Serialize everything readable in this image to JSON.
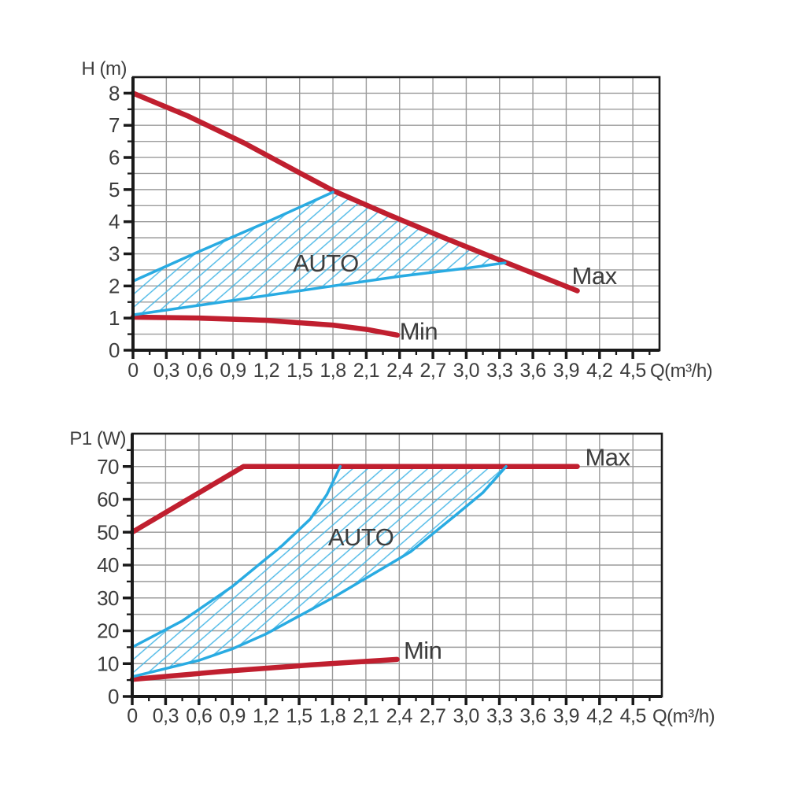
{
  "colors": {
    "red": "#c01f2f",
    "blue": "#29abe2",
    "hatch_blue": "#4ab8e6",
    "grid": "#9b9b9b",
    "axis": "#1a1a1a",
    "text": "#3d3d3d",
    "background": "#ffffff"
  },
  "chart_data": [
    {
      "type": "line",
      "title": "Pump head vs flow",
      "ylabel": "H (m)",
      "xlabel": "Q(m³/h)",
      "xlim": [
        0,
        4.74
      ],
      "ylim": [
        0,
        8.5
      ],
      "x_major": 0.3,
      "x_minor": 0.15,
      "y_major": 1,
      "y_minor": 0.5,
      "grid": true,
      "x_tick_labels": [
        "0",
        "0,3",
        "0,6",
        "0,9",
        "1,2",
        "1,5",
        "1,8",
        "2,1",
        "2,4",
        "2,7",
        "3,0",
        "3,3",
        "3,6",
        "3,9",
        "4,2",
        "4,5"
      ],
      "y_tick_labels": [
        "0",
        "1",
        "2",
        "3",
        "4",
        "5",
        "6",
        "7",
        "8"
      ],
      "series": [
        {
          "name": "Max",
          "color": "red",
          "width": 6.5,
          "points": [
            [
              0,
              8.0
            ],
            [
              0.5,
              7.28
            ],
            [
              1.0,
              6.45
            ],
            [
              1.5,
              5.52
            ],
            [
              1.8,
              4.97
            ],
            [
              2.3,
              4.22
            ],
            [
              2.8,
              3.5
            ],
            [
              3.35,
              2.74
            ],
            [
              4.0,
              1.85
            ]
          ]
        },
        {
          "name": "Min",
          "color": "red",
          "width": 6.5,
          "points": [
            [
              0,
              1.03
            ],
            [
              0.6,
              1.0
            ],
            [
              1.2,
              0.93
            ],
            [
              1.8,
              0.78
            ],
            [
              2.1,
              0.65
            ],
            [
              2.38,
              0.47
            ]
          ]
        },
        {
          "name": "AUTO-upper",
          "color": "blue",
          "width": 3.5,
          "points": [
            [
              0,
              2.15
            ],
            [
              0.6,
              3.08
            ],
            [
              1.2,
              3.98
            ],
            [
              1.8,
              4.92
            ]
          ]
        },
        {
          "name": "AUTO-lower",
          "color": "blue",
          "width": 3.5,
          "points": [
            [
              0,
              1.1
            ],
            [
              0.8,
              1.5
            ],
            [
              1.6,
              1.9
            ],
            [
              2.4,
              2.3
            ],
            [
              3.0,
              2.55
            ],
            [
              3.35,
              2.72
            ]
          ]
        }
      ],
      "hatch_region": [
        [
          0,
          2.15
        ],
        [
          0.6,
          3.08
        ],
        [
          1.2,
          3.98
        ],
        [
          1.8,
          4.92
        ],
        [
          2.3,
          4.22
        ],
        [
          2.8,
          3.5
        ],
        [
          3.35,
          2.72
        ],
        [
          3.0,
          2.55
        ],
        [
          2.4,
          2.3
        ],
        [
          1.6,
          1.9
        ],
        [
          0.8,
          1.5
        ],
        [
          0,
          1.1
        ]
      ],
      "annotations": [
        {
          "text": "AUTO",
          "x": 1.44,
          "y": 2.45
        },
        {
          "text": "Max",
          "x": 3.95,
          "y": 2.06
        },
        {
          "text": "Min",
          "x": 2.4,
          "y": 0.33
        }
      ]
    },
    {
      "type": "line",
      "title": "Pump power vs flow",
      "ylabel": "P1 (W)",
      "xlabel": "Q(m³/h)",
      "xlim": [
        0,
        4.76
      ],
      "ylim": [
        0,
        80
      ],
      "x_major": 0.3,
      "x_minor": 0.15,
      "y_major": 10,
      "y_minor": 5,
      "grid": true,
      "x_tick_labels": [
        "0",
        "0,3",
        "0,6",
        "0,9",
        "1,2",
        "1,5",
        "1,8",
        "2,1",
        "2,4",
        "2,7",
        "3,0",
        "3,3",
        "3,6",
        "3,9",
        "4,2",
        "4,5"
      ],
      "y_tick_labels": [
        "0",
        "10",
        "20",
        "30",
        "40",
        "50",
        "60",
        "70"
      ],
      "series": [
        {
          "name": "Max",
          "color": "red",
          "width": 6.5,
          "points": [
            [
              0,
              50
            ],
            [
              1.0,
              70
            ],
            [
              4.0,
              70
            ]
          ]
        },
        {
          "name": "Min",
          "color": "red",
          "width": 6.5,
          "points": [
            [
              0,
              5.2
            ],
            [
              0.8,
              7.6
            ],
            [
              1.6,
              9.6
            ],
            [
              2.38,
              11.3
            ]
          ]
        },
        {
          "name": "AUTO-upper",
          "color": "blue",
          "width": 3.5,
          "points": [
            [
              0,
              15
            ],
            [
              0.45,
              23
            ],
            [
              0.9,
              33.5
            ],
            [
              1.35,
              46
            ],
            [
              1.6,
              54
            ],
            [
              1.75,
              61.5
            ],
            [
              1.87,
              70
            ]
          ]
        },
        {
          "name": "AUTO-lower",
          "color": "blue",
          "width": 3.5,
          "points": [
            [
              0,
              6
            ],
            [
              0.3,
              8.5
            ],
            [
              0.6,
              11
            ],
            [
              0.9,
              14.5
            ],
            [
              1.2,
              19
            ],
            [
              1.5,
              24.5
            ],
            [
              1.8,
              30
            ],
            [
              2.1,
              36
            ],
            [
              2.5,
              44
            ],
            [
              2.9,
              55
            ],
            [
              3.15,
              62
            ],
            [
              3.36,
              70
            ]
          ]
        }
      ],
      "hatch_region": [
        [
          0,
          15
        ],
        [
          0.45,
          23
        ],
        [
          0.9,
          33.5
        ],
        [
          1.35,
          46
        ],
        [
          1.6,
          54
        ],
        [
          1.75,
          61.5
        ],
        [
          1.87,
          70
        ],
        [
          3.36,
          70
        ],
        [
          3.15,
          62
        ],
        [
          2.9,
          55
        ],
        [
          2.5,
          44
        ],
        [
          2.1,
          36
        ],
        [
          1.8,
          30
        ],
        [
          1.5,
          24.5
        ],
        [
          1.2,
          19
        ],
        [
          0.9,
          14.5
        ],
        [
          0.6,
          11
        ],
        [
          0.3,
          8.5
        ],
        [
          0,
          6
        ]
      ],
      "annotations": [
        {
          "text": "AUTO",
          "x": 1.76,
          "y": 46.0
        },
        {
          "text": "Max",
          "x": 4.07,
          "y": 70.3
        },
        {
          "text": "Min",
          "x": 2.44,
          "y": 11.5
        }
      ]
    }
  ]
}
